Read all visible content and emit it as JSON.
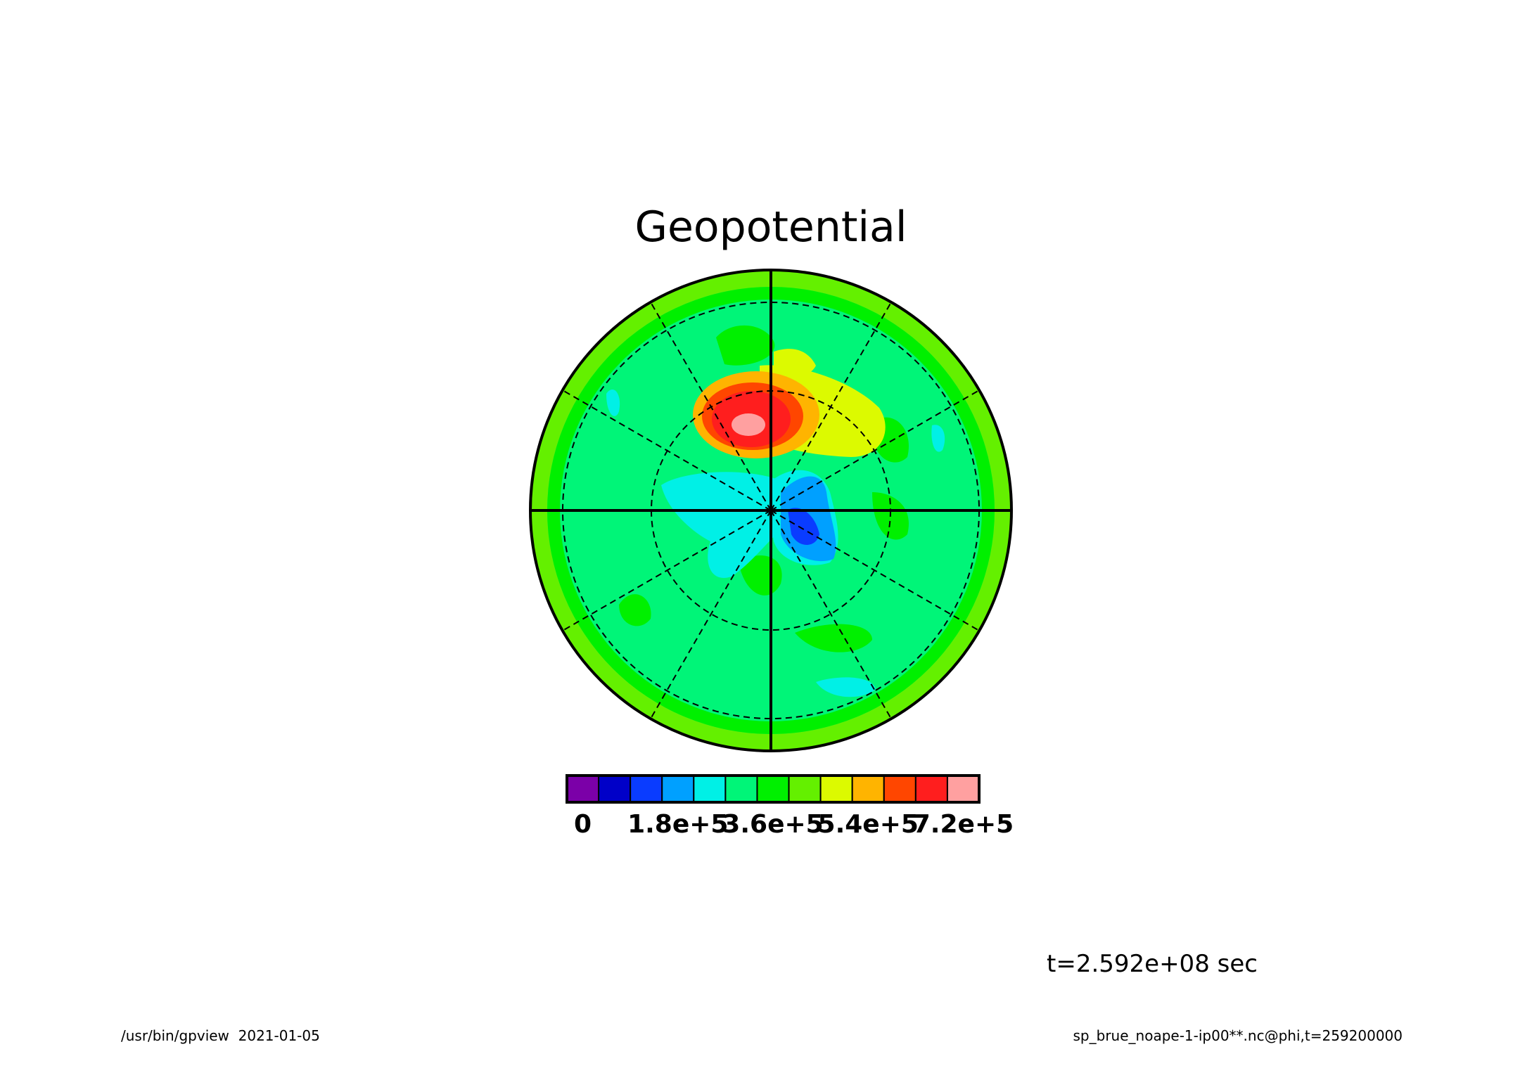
{
  "chart_data": {
    "type": "heatmap",
    "projection": "polar stereographic",
    "title": "Geopotential",
    "time_label": "t=2.592e+08 sec",
    "footer_left": "/usr/bin/gpview  2021-01-05",
    "footer_right": "sp_brue_noape-1-ip00**.nc@phi,t=259200000",
    "colorbar": {
      "colors": [
        "#7b00a8",
        "#0000c8",
        "#0a3cff",
        "#00a0ff",
        "#00f0e6",
        "#00f578",
        "#00f000",
        "#64f000",
        "#dcfa00",
        "#ffb400",
        "#ff4600",
        "#ff1e1e",
        "#ffa0a0"
      ],
      "tick_labels": [
        "0",
        "1.8e+5",
        "3.6e+5",
        "5.4e+5",
        "7.2e+5"
      ],
      "tick_values": [
        0,
        180000,
        360000,
        540000,
        720000
      ],
      "interval": 60000
    },
    "grid": true,
    "features": [
      {
        "level": 12,
        "level_value": 720000,
        "note": "maximum"
      },
      {
        "level": 1,
        "level_value": 60000,
        "note": "minimum"
      }
    ]
  }
}
